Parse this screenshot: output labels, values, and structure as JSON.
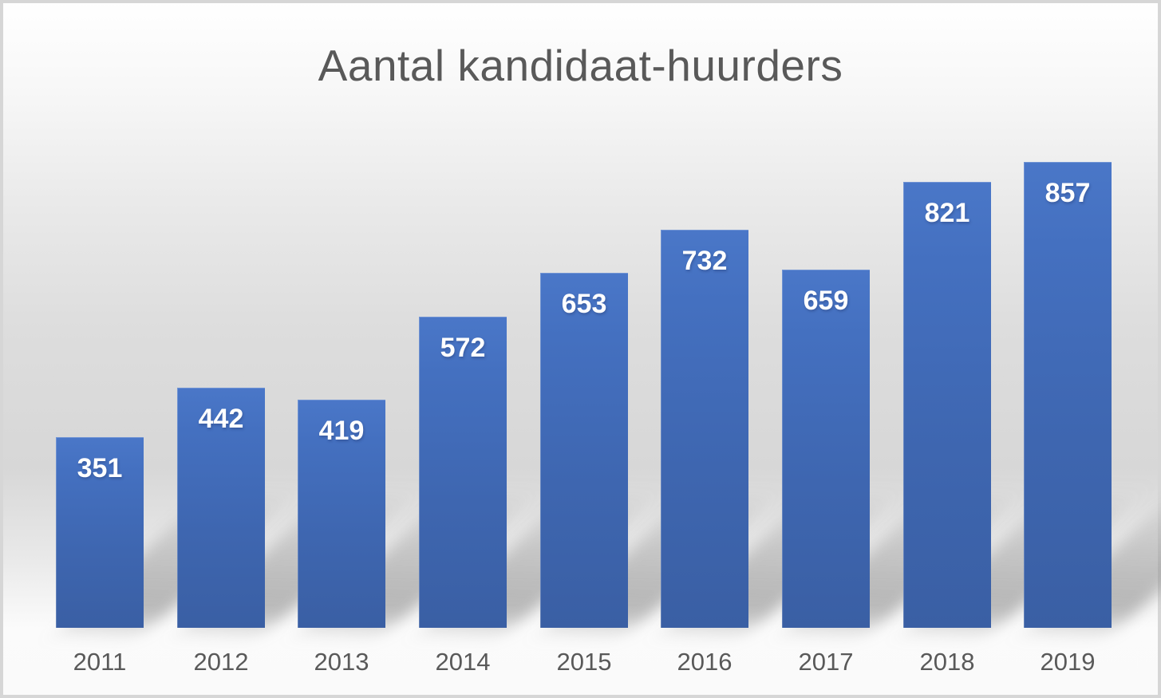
{
  "chart_data": {
    "type": "bar",
    "title": "Aantal kandidaat-huurders",
    "categories": [
      "2011",
      "2012",
      "2013",
      "2014",
      "2015",
      "2016",
      "2017",
      "2018",
      "2019"
    ],
    "values": [
      351,
      442,
      419,
      572,
      653,
      732,
      659,
      821,
      857
    ],
    "xlabel": "",
    "ylabel": "",
    "ylim": [
      0,
      900
    ],
    "grid": false,
    "legend": "none",
    "axis_lines": "none",
    "data_labels_position": "inside-end",
    "colors": {
      "bar_fill_top": "#4A77C8",
      "bar_fill_bottom": "#3A5FA4",
      "data_label_text": "#FFFFFF",
      "title_text": "#595959",
      "axis_label_text": "#595959",
      "frame_border": "#D6D6D6",
      "background_mid": "#D7D7D7",
      "background_edge": "#FFFFFF"
    }
  }
}
